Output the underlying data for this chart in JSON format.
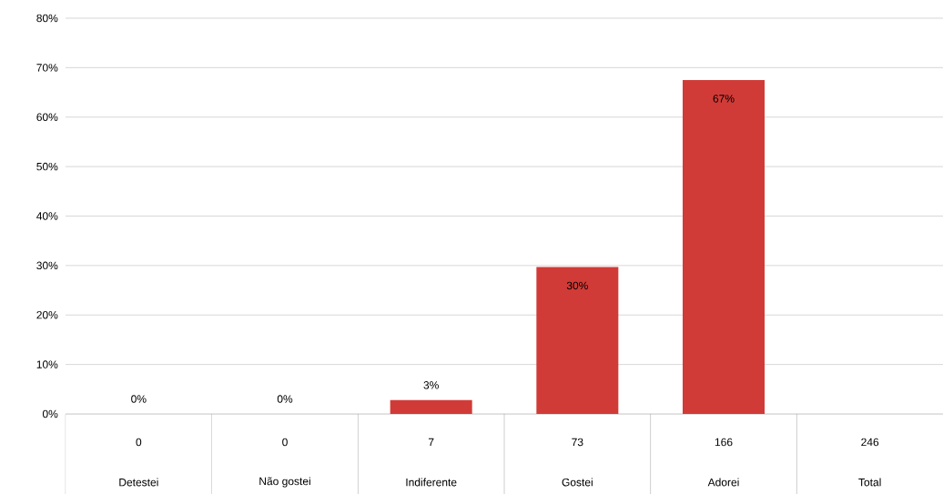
{
  "chart_data": {
    "type": "bar",
    "categories": [
      "Detestei",
      "Não gostei",
      "Indiferente",
      "Gostei",
      "Adorei",
      "Total"
    ],
    "values": [
      0,
      0,
      2.8,
      29.7,
      67.5,
      null
    ],
    "value_labels": [
      "0%",
      "0%",
      "3%",
      "30%",
      "67%",
      null
    ],
    "color": "#d13b37",
    "ylim": [
      0,
      80
    ],
    "yticks": [
      {
        "value": 0,
        "label": "0%"
      },
      {
        "value": 10,
        "label": "10%"
      },
      {
        "value": 20,
        "label": "20%"
      },
      {
        "value": 30,
        "label": "30%"
      },
      {
        "value": 40,
        "label": "40%"
      },
      {
        "value": 50,
        "label": "50%"
      },
      {
        "value": 60,
        "label": "60%"
      },
      {
        "value": 70,
        "label": "70%"
      },
      {
        "value": 80,
        "label": "80%"
      }
    ],
    "grid": "y",
    "annotations": [
      "0",
      "0",
      "7",
      "73",
      "166",
      "246"
    ]
  }
}
